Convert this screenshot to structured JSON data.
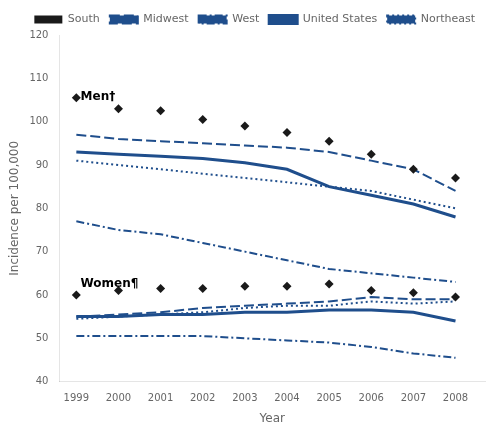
{
  "chart_data": {
    "type": "line",
    "x": [
      1999,
      2000,
      2001,
      2002,
      2003,
      2004,
      2005,
      2006,
      2007,
      2008
    ],
    "series": [
      {
        "name": "Midwest",
        "color": "#1F4E8C",
        "line_style": "dashed",
        "values": [
          97,
          96,
          95.5,
          95,
          94.5,
          94,
          93,
          91,
          89,
          84
        ]
      },
      {
        "name": "South",
        "color": "#1a1a1a",
        "type": "scatter",
        "marker": "diamond",
        "values": [
          105.5,
          103,
          102.5,
          100.5,
          99,
          97.5,
          95.5,
          92.5,
          89,
          87
        ]
      },
      {
        "name": "West",
        "color": "#1F4E8C",
        "line_style": "dashdot",
        "values": [
          77,
          75,
          74,
          72,
          70,
          68,
          66,
          65,
          64,
          63
        ]
      },
      {
        "name": "United States",
        "color": "#1F4E8C",
        "line_style": "solid",
        "values": [
          93,
          92.5,
          92,
          91.5,
          90.5,
          89,
          85,
          83,
          81,
          78
        ]
      },
      {
        "name": "Northeast",
        "color": "#1F4E8C",
        "line_style": "dotted",
        "values": [
          91,
          90,
          89,
          88,
          87,
          86,
          85,
          84,
          82,
          80
        ]
      },
      {
        "name": "Midwest",
        "color": "#1F4E8C",
        "line_style": "dashed",
        "values": [
          55,
          55.5,
          56,
          57,
          57.5,
          58,
          58.5,
          59.5,
          59,
          59
        ]
      },
      {
        "name": "South",
        "color": "#1a1a1a",
        "type": "scatter",
        "marker": "diamond",
        "values": [
          60,
          61,
          61.5,
          61.5,
          62,
          62,
          62.5,
          61,
          60.5,
          59.5
        ]
      },
      {
        "name": "West",
        "color": "#1F4E8C",
        "line_style": "dashdot",
        "values": [
          50.5,
          50.5,
          50.5,
          50.5,
          50,
          49.5,
          49,
          48,
          46.5,
          45.5
        ]
      },
      {
        "name": "United States",
        "color": "#1F4E8C",
        "line_style": "solid",
        "values": [
          55,
          55,
          55.5,
          55.5,
          56,
          56,
          56.5,
          56.5,
          56,
          54
        ]
      },
      {
        "name": "Northeast",
        "color": "#1F4E8C",
        "line_style": "dotted",
        "values": [
          54.5,
          55,
          55.5,
          56,
          57,
          57.5,
          57.5,
          58.5,
          58,
          58.5
        ]
      }
    ],
    "annotations": [
      {
        "text": "Men†",
        "x": 1999.1,
        "y": 107
      },
      {
        "text": "Women¶",
        "x": 1999.1,
        "y": 64
      }
    ],
    "xlabel": "Year",
    "ylabel": "Incidence per 100,000",
    "xlim": [
      1998.6,
      2008.7
    ],
    "xticks": [
      1999,
      2000,
      2001,
      2002,
      2003,
      2004,
      2005,
      2006,
      2007,
      2008
    ],
    "ylim": [
      40,
      120
    ],
    "yticks": [
      40,
      50,
      60,
      70,
      80,
      90,
      100,
      110,
      120
    ],
    "grid": false,
    "legend": "upper right"
  }
}
